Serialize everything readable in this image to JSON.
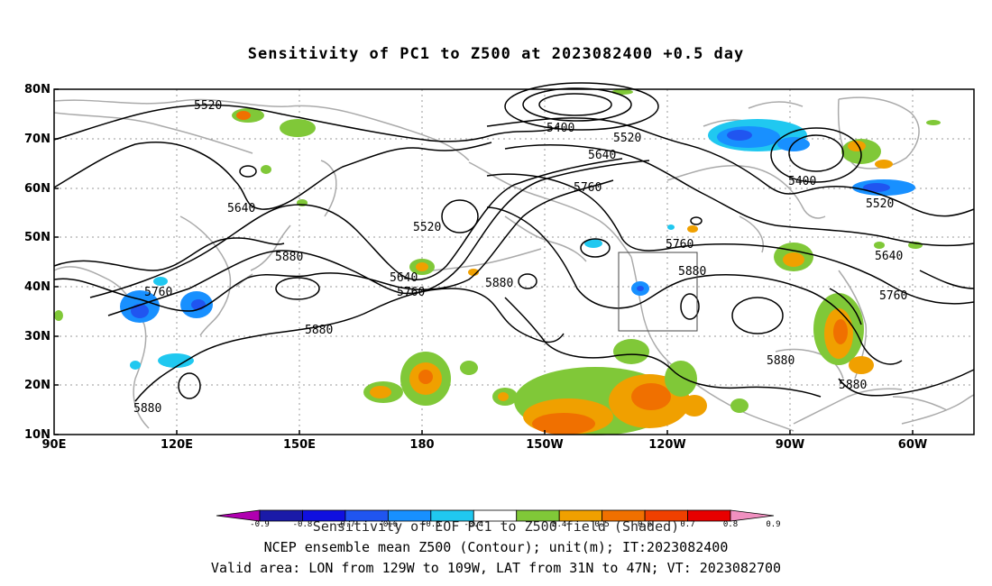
{
  "title": "Sensitivity of PC1 to Z500 at 2023082400 +0.5 day",
  "lat_ticks": [
    "80N",
    "70N",
    "60N",
    "50N",
    "40N",
    "30N",
    "20N",
    "10N"
  ],
  "lon_ticks": [
    "90E",
    "120E",
    "150E",
    "180",
    "150W",
    "120W",
    "90W",
    "60W"
  ],
  "contour_labels": [
    {
      "text": "5520"
    },
    {
      "text": "5400"
    },
    {
      "text": "5520"
    },
    {
      "text": "5640"
    },
    {
      "text": "5760"
    },
    {
      "text": "5400"
    },
    {
      "text": "5520"
    },
    {
      "text": "5640"
    },
    {
      "text": "5520"
    },
    {
      "text": "5640"
    },
    {
      "text": "5760"
    },
    {
      "text": "5880"
    },
    {
      "text": "5760"
    },
    {
      "text": "5640"
    },
    {
      "text": "5760"
    },
    {
      "text": "5880"
    },
    {
      "text": "5880"
    },
    {
      "text": "5880"
    },
    {
      "text": "5880"
    },
    {
      "text": "5760"
    },
    {
      "text": "5880"
    },
    {
      "text": "5880"
    }
  ],
  "colorbar": {
    "colors": [
      "#b000b0",
      "#1a1aa8",
      "#1010e0",
      "#2055f0",
      "#1890ff",
      "#20c8f0",
      "#ffffff",
      "#80c838",
      "#f0a000",
      "#f07000",
      "#f04000",
      "#e80000",
      "#f090c0"
    ],
    "ticks": [
      "-0.9",
      "-0.8",
      "-0.7",
      "-0.6",
      "-0.5",
      "-0.4",
      "0.4",
      "0.5",
      "0.6",
      "0.7",
      "0.8",
      "0.9"
    ]
  },
  "captions": {
    "line1": "Sensitivity of EOF PC1 to Z500 field (Shaded)",
    "line2": "NCEP ensemble mean Z500 (Contour); unit(m); IT:2023082400",
    "line3": "Valid area: LON from 129W to 109W, LAT from 31N to 47N; VT: 2023082700"
  }
}
